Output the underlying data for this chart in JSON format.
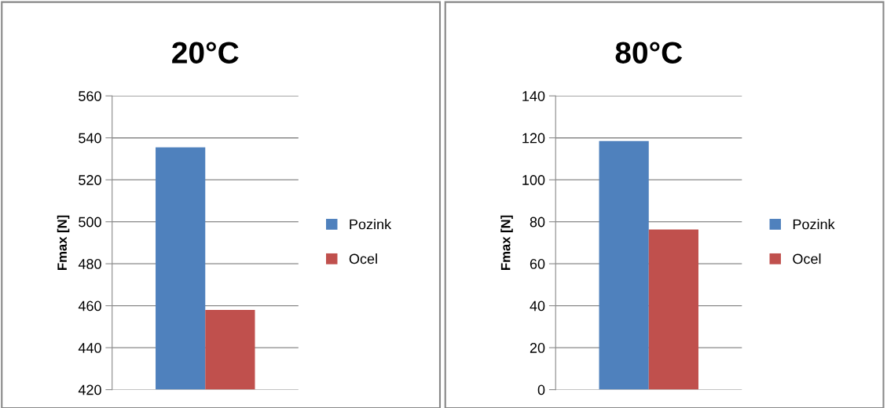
{
  "chart_data": [
    {
      "type": "bar",
      "title": "20°C",
      "ylabel": "Fmax [N]",
      "categories": [
        null
      ],
      "series": [
        {
          "name": "Pozink",
          "color": "#4f81bd",
          "values": [
            535.5
          ]
        },
        {
          "name": "Ocel",
          "color": "#c0504d",
          "values": [
            458
          ]
        }
      ],
      "ylim": [
        420,
        560
      ],
      "yticks": [
        420,
        440,
        460,
        480,
        500,
        520,
        540,
        560
      ],
      "grid": "y",
      "legend": "right"
    },
    {
      "type": "bar",
      "title": "80°C",
      "ylabel": "Fmax [N]",
      "categories": [
        null
      ],
      "series": [
        {
          "name": "Pozink",
          "color": "#4f81bd",
          "values": [
            118.5
          ]
        },
        {
          "name": "Ocel",
          "color": "#c0504d",
          "values": [
            76.3
          ]
        }
      ],
      "ylim": [
        0,
        140
      ],
      "yticks": [
        0,
        20,
        40,
        60,
        80,
        100,
        120,
        140
      ],
      "grid": "y",
      "legend": "right"
    }
  ]
}
